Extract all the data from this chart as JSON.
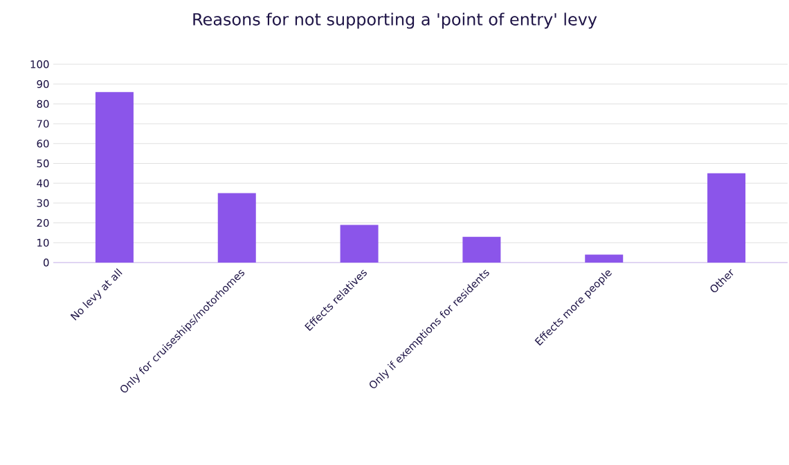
{
  "chart_data": {
    "type": "bar",
    "title": "Reasons for not supporting a 'point of entry' levy",
    "categories": [
      "No levy at all",
      "Only for cruiseships/motorhomes",
      "Effects relatives",
      "Only if exemptions for residents",
      "Effects more people",
      "Other"
    ],
    "values": [
      86,
      35,
      19,
      13,
      4,
      45
    ],
    "color": "#8b55ea",
    "ylim": [
      0,
      100
    ],
    "yticks": [
      0,
      10,
      20,
      30,
      40,
      50,
      60,
      70,
      80,
      90,
      100
    ],
    "grid": "y"
  }
}
